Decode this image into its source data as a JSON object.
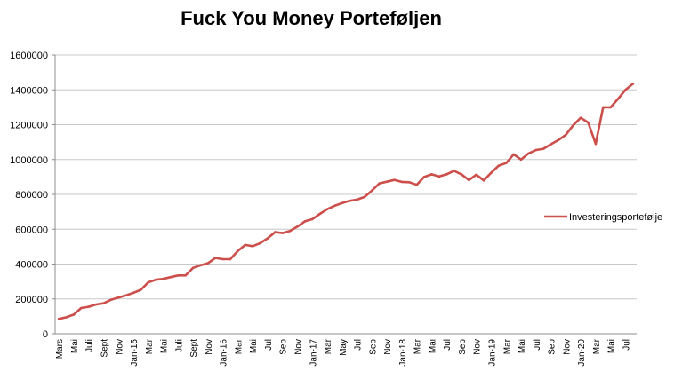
{
  "chart_data": {
    "type": "line",
    "title": "Fuck You Money Porteføljen",
    "xlabel": "",
    "ylabel": "",
    "ylim": [
      0,
      1600000
    ],
    "yticks": [
      "0",
      "200000",
      "400000",
      "600000",
      "800000",
      "1000000",
      "1200000",
      "1400000",
      "1600000"
    ],
    "grid": "horizontal",
    "legend": "right",
    "color": "#cc4f4c",
    "categories": [
      "Mars",
      "",
      "Mai",
      "",
      "Juli",
      "",
      "Sept",
      "",
      "Nov",
      "",
      "Jan-15",
      "",
      "Mar",
      "",
      "Mai",
      "",
      "Juli",
      "",
      "Sept",
      "",
      "Nov",
      "",
      "Jan-16",
      "",
      "Mar",
      "",
      "Mai",
      "",
      "Jul",
      "",
      "Sep",
      "",
      "Nov",
      "",
      "Jan-17",
      "",
      "Mar",
      "",
      "May",
      "",
      "Jul",
      "",
      "Sep",
      "",
      "Nov",
      "",
      "Jan-18",
      "",
      "Mar",
      "",
      "Mai",
      "",
      "Jul",
      "",
      "Sep",
      "",
      "Nov",
      "",
      "Jan-19",
      "",
      "Mar",
      "",
      "Mai",
      "",
      "Jul",
      "",
      "Sep",
      "",
      "Nov",
      "",
      "Jan-20",
      "",
      "Mar",
      "",
      "Mai",
      "",
      "Jul",
      ""
    ],
    "series": [
      {
        "name": "Investeringsportefølje",
        "values": [
          85000,
          95000,
          110000,
          148000,
          155000,
          168000,
          175000,
          195000,
          208000,
          220000,
          235000,
          252000,
          295000,
          310000,
          315000,
          325000,
          335000,
          335000,
          378000,
          393000,
          405000,
          435000,
          428000,
          428000,
          475000,
          510000,
          503000,
          520000,
          548000,
          583000,
          578000,
          590000,
          615000,
          645000,
          658000,
          688000,
          715000,
          735000,
          750000,
          763000,
          770000,
          785000,
          822000,
          863000,
          873000,
          883000,
          872000,
          870000,
          855000,
          900000,
          915000,
          903000,
          915000,
          935000,
          915000,
          882000,
          913000,
          880000,
          925000,
          965000,
          980000,
          1030000,
          1000000,
          1035000,
          1055000,
          1062000,
          1088000,
          1112000,
          1142000,
          1197000,
          1240000,
          1212000,
          1090000,
          1300000,
          1300000,
          1348000,
          1400000,
          1435000
        ]
      }
    ]
  }
}
